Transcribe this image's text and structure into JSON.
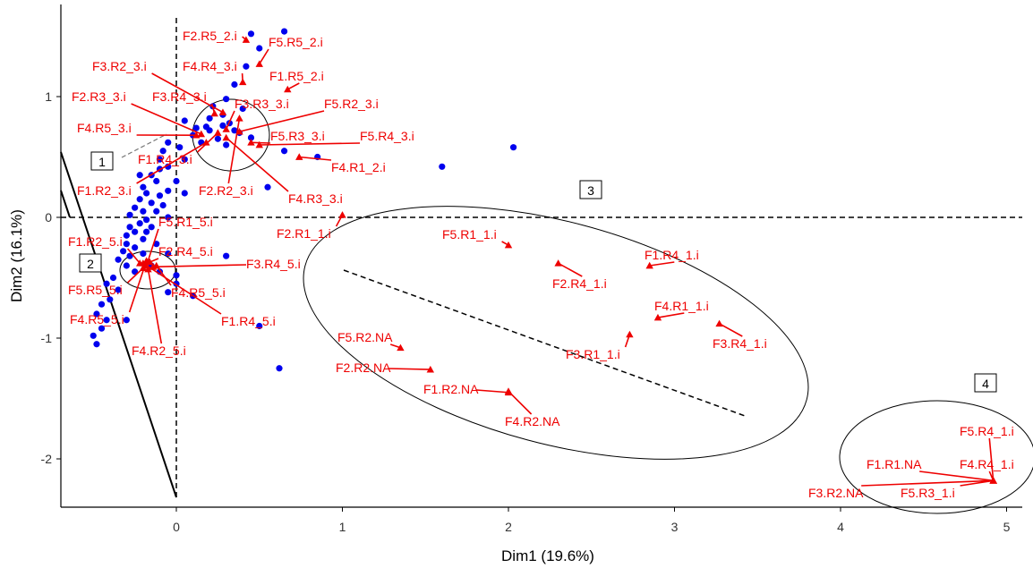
{
  "chart_data": {
    "type": "scatter",
    "xlabel": "Dim1 (19.6%)",
    "ylabel": "Dim2 (16.1%)",
    "xlim": [
      -0.7,
      5.1
    ],
    "ylim": [
      -2.35,
      1.68
    ],
    "xticks": [
      "0",
      "1",
      "2",
      "3",
      "4",
      "5"
    ],
    "yticks": [
      "-2",
      "-1",
      "0",
      "1"
    ],
    "grid": false,
    "colors": {
      "individuals": "#0000ee",
      "categories": "#ee0000",
      "ellipse": "#000000",
      "axis": "#000000"
    },
    "individuals": [
      [
        0.45,
        1.52
      ],
      [
        0.65,
        1.54
      ],
      [
        0.5,
        1.4
      ],
      [
        0.42,
        1.25
      ],
      [
        0.35,
        1.1
      ],
      [
        0.3,
        0.98
      ],
      [
        0.22,
        0.92
      ],
      [
        0.28,
        0.85
      ],
      [
        0.2,
        0.82
      ],
      [
        0.18,
        0.75
      ],
      [
        0.05,
        0.8
      ],
      [
        0.1,
        0.68
      ],
      [
        0.35,
        0.72
      ],
      [
        0.25,
        0.65
      ],
      [
        0.3,
        0.6
      ],
      [
        0.32,
        0.78
      ],
      [
        0.15,
        0.62
      ],
      [
        0.02,
        0.58
      ],
      [
        0.05,
        0.48
      ],
      [
        -0.05,
        0.62
      ],
      [
        -0.08,
        0.55
      ],
      [
        -0.1,
        0.48
      ],
      [
        -0.05,
        0.42
      ],
      [
        -0.1,
        0.4
      ],
      [
        0.0,
        0.3
      ],
      [
        0.85,
        0.5
      ],
      [
        1.6,
        0.42
      ],
      [
        2.03,
        0.58
      ],
      [
        0.55,
        0.25
      ],
      [
        0.65,
        0.55
      ],
      [
        -0.15,
        0.35
      ],
      [
        -0.12,
        0.3
      ],
      [
        -0.2,
        0.25
      ],
      [
        -0.05,
        0.22
      ],
      [
        -0.1,
        0.18
      ],
      [
        -0.18,
        0.2
      ],
      [
        -0.22,
        0.15
      ],
      [
        -0.15,
        0.12
      ],
      [
        -0.08,
        0.1
      ],
      [
        -0.25,
        0.08
      ],
      [
        -0.2,
        0.05
      ],
      [
        -0.12,
        0.05
      ],
      [
        -0.28,
        0.02
      ],
      [
        -0.18,
        -0.02
      ],
      [
        -0.22,
        -0.05
      ],
      [
        -0.28,
        -0.08
      ],
      [
        -0.15,
        -0.08
      ],
      [
        -0.25,
        -0.12
      ],
      [
        -0.3,
        -0.15
      ],
      [
        -0.2,
        -0.18
      ],
      [
        -0.3,
        -0.22
      ],
      [
        -0.25,
        -0.25
      ],
      [
        -0.32,
        -0.28
      ],
      [
        -0.28,
        -0.32
      ],
      [
        -0.2,
        -0.3
      ],
      [
        -0.35,
        -0.35
      ],
      [
        -0.3,
        -0.4
      ],
      [
        -0.25,
        -0.45
      ],
      [
        -0.38,
        -0.5
      ],
      [
        -0.42,
        -0.55
      ],
      [
        -0.35,
        -0.6
      ],
      [
        -0.4,
        -0.68
      ],
      [
        -0.45,
        -0.72
      ],
      [
        -0.48,
        -0.8
      ],
      [
        -0.42,
        -0.85
      ],
      [
        -0.45,
        -0.92
      ],
      [
        -0.5,
        -0.98
      ],
      [
        -0.48,
        -1.05
      ],
      [
        -0.3,
        -0.85
      ],
      [
        -0.1,
        -0.45
      ],
      [
        0.0,
        -0.48
      ],
      [
        0.3,
        -0.32
      ],
      [
        0.5,
        -0.9
      ],
      [
        0.62,
        -1.25
      ],
      [
        0.1,
        -0.65
      ],
      [
        -0.05,
        -0.62
      ],
      [
        0.0,
        -0.55
      ],
      [
        -0.22,
        0.35
      ],
      [
        0.05,
        0.2
      ],
      [
        -0.05,
        0.0
      ],
      [
        -0.15,
        -0.4
      ],
      [
        -0.05,
        -0.3
      ],
      [
        -0.18,
        -0.12
      ],
      [
        -0.12,
        -0.22
      ],
      [
        0.38,
        0.7
      ],
      [
        0.45,
        0.66
      ],
      [
        0.28,
        0.76
      ],
      [
        0.4,
        0.9
      ],
      [
        0.2,
        0.72
      ],
      [
        0.12,
        0.74
      ]
    ],
    "categories": [
      {
        "name": "F2.R5_2.i",
        "x": 0.42,
        "y": 1.47
      },
      {
        "name": "F5.R5_2.i",
        "x": 0.5,
        "y": 1.27
      },
      {
        "name": "F3.R2_3.i",
        "x": 0.28,
        "y": 0.87
      },
      {
        "name": "F4.R4_3.i",
        "x": 0.4,
        "y": 1.12
      },
      {
        "name": "F1.R5_2.i",
        "x": 0.67,
        "y": 1.06
      },
      {
        "name": "F2.R3_3.i",
        "x": 0.15,
        "y": 0.69
      },
      {
        "name": "F3.R4_3.i",
        "x": 0.23,
        "y": 0.86
      },
      {
        "name": "F3.R3_3.i",
        "x": 0.3,
        "y": 0.73
      },
      {
        "name": "F5.R2_3.i",
        "x": 0.38,
        "y": 0.71
      },
      {
        "name": "F4.R5_3.i",
        "x": 0.12,
        "y": 0.68
      },
      {
        "name": "F5.R3_3.i",
        "x": 0.45,
        "y": 0.62
      },
      {
        "name": "F5.R4_3.i",
        "x": 0.5,
        "y": 0.6
      },
      {
        "name": "F1.R4_3.i",
        "x": 0.25,
        "y": 0.7
      },
      {
        "name": "F4.R1_2.i",
        "x": 0.74,
        "y": 0.5
      },
      {
        "name": "F1.R2_3.i",
        "x": 0.18,
        "y": 0.62
      },
      {
        "name": "F2.R2_3.i",
        "x": 0.38,
        "y": 0.82
      },
      {
        "name": "F4.R3_3.i",
        "x": 0.3,
        "y": 0.66
      },
      {
        "name": "F2.R1_1.i",
        "x": 1.0,
        "y": 0.02
      },
      {
        "name": "F5.R1_5.i",
        "x": -0.18,
        "y": -0.4
      },
      {
        "name": "F1.R2_5.i",
        "x": -0.22,
        "y": -0.38
      },
      {
        "name": "F2.R4_5.i",
        "x": -0.16,
        "y": -0.37
      },
      {
        "name": "F3.R4_5.i",
        "x": -0.14,
        "y": -0.41
      },
      {
        "name": "F5.R5_5.i",
        "x": -0.2,
        "y": -0.42
      },
      {
        "name": "F4.R5_5.i",
        "x": -0.12,
        "y": -0.4
      },
      {
        "name": "F1.R4_5.i",
        "x": -0.2,
        "y": -0.38
      },
      {
        "name": "F4.R5_5.i",
        "x": -0.18,
        "y": -0.36
      },
      {
        "name": "F4.R2_5.i",
        "x": -0.17,
        "y": -0.43
      },
      {
        "name": "F5.R1_1.i",
        "x": 2.0,
        "y": -0.23
      },
      {
        "name": "F1.R4_1.i",
        "x": 2.85,
        "y": -0.4
      },
      {
        "name": "F2.R4_1.i",
        "x": 2.3,
        "y": -0.38
      },
      {
        "name": "F4.R1_1.i",
        "x": 2.9,
        "y": -0.83
      },
      {
        "name": "F3.R4_1.i",
        "x": 3.27,
        "y": -0.88
      },
      {
        "name": "F3.R1_1.i",
        "x": 2.73,
        "y": -0.97
      },
      {
        "name": "F5.R2.NA",
        "x": 1.35,
        "y": -1.08
      },
      {
        "name": "F2.R2.NA",
        "x": 1.53,
        "y": -1.26
      },
      {
        "name": "F1.R2.NA",
        "x": 2.0,
        "y": -1.45
      },
      {
        "name": "F4.R2.NA",
        "x": 2.0,
        "y": -1.44
      },
      {
        "name": "F5.R4_1.i",
        "x": 4.92,
        "y": -2.18
      },
      {
        "name": "F1.R1.NA",
        "x": 4.92,
        "y": -2.18
      },
      {
        "name": "F4.R4_1.i",
        "x": 4.92,
        "y": -2.18
      },
      {
        "name": "F3.R2.NA",
        "x": 4.92,
        "y": -2.18
      },
      {
        "name": "F5.R3_1.i",
        "x": 4.92,
        "y": -2.18
      }
    ],
    "cluster_labels": [
      "1",
      "2",
      "3",
      "4"
    ]
  }
}
